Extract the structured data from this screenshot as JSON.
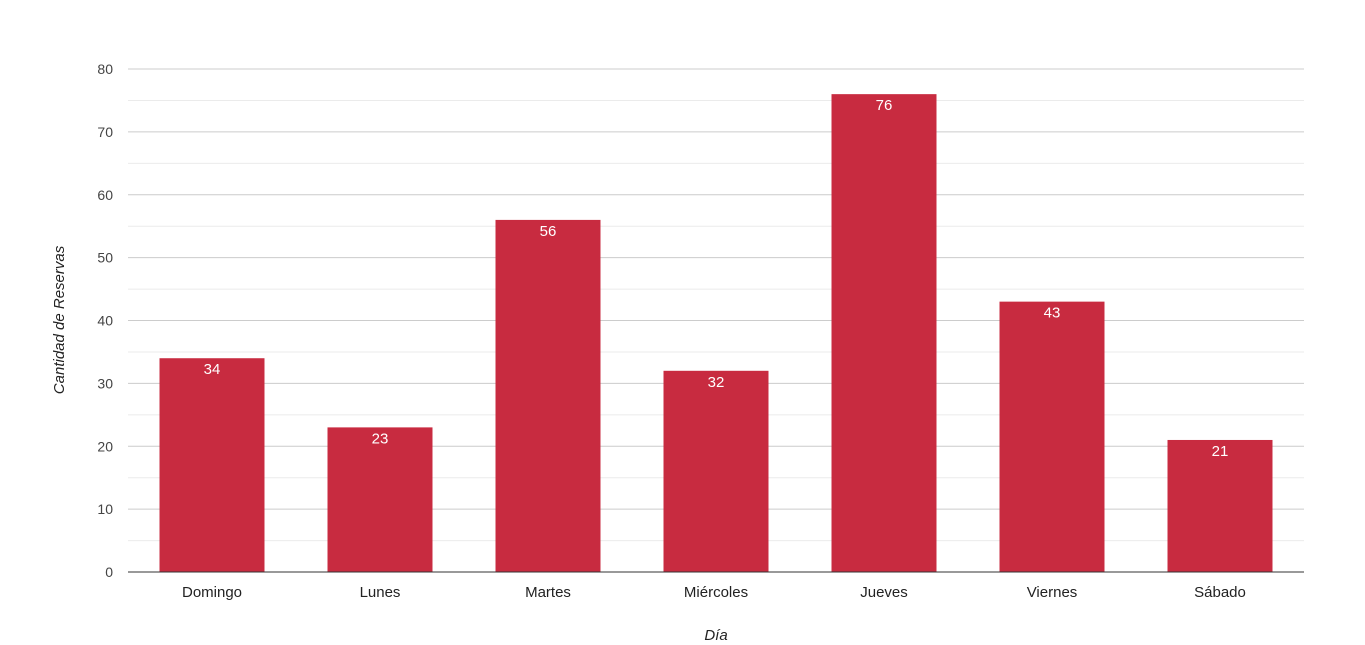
{
  "chart_data": {
    "type": "bar",
    "categories": [
      "Domingo",
      "Lunes",
      "Martes",
      "Miércoles",
      "Jueves",
      "Viernes",
      "Sábado"
    ],
    "values": [
      34,
      23,
      56,
      32,
      76,
      43,
      21
    ],
    "data_labels": [
      "34",
      "23",
      "56",
      "32",
      "76",
      "43",
      "21"
    ],
    "xlabel": "Día",
    "ylabel": "Cantidad de Reservas",
    "ylim": [
      0,
      80
    ],
    "yticks": [
      "0",
      "10",
      "20",
      "30",
      "40",
      "50",
      "60",
      "70",
      "80"
    ],
    "grid": true,
    "legend": "none",
    "bar_color": "#c82b40",
    "gridline_color": "#cccccc",
    "minor_gridline_color": "#ebebeb"
  }
}
